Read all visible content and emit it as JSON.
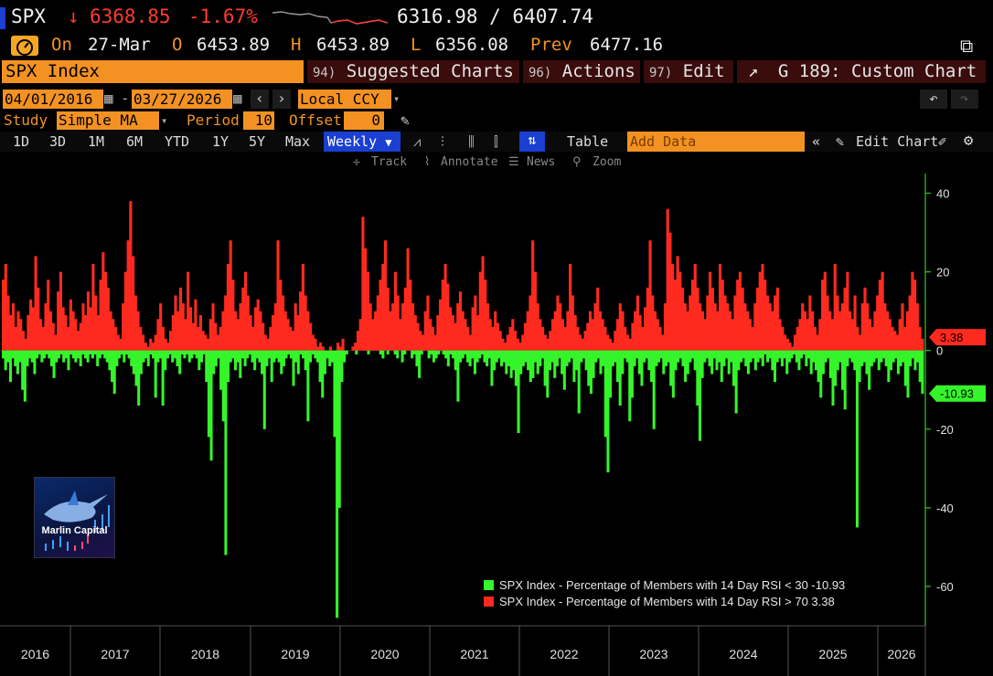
{
  "header": {
    "ticker": "SPX",
    "last": "6368.85",
    "change_pct": "-1.67%",
    "low_high": "6316.98 / 6407.74",
    "on_label": "On",
    "date": "27-Mar",
    "o_label": "O",
    "open": "6453.89",
    "h_label": "H",
    "high": "6453.89",
    "l_label": "L",
    "low": "6356.08",
    "prev_label": "Prev",
    "prev": "6477.16"
  },
  "toolbar": {
    "security": "SPX Index",
    "suggested_num": "94)",
    "suggested": "Suggested Charts",
    "actions_num": "96)",
    "actions": "Actions",
    "edit_num": "97)",
    "edit": "Edit",
    "custom_chart": "G 189: Custom Chart"
  },
  "controls": {
    "start_date": "04/01/2016",
    "end_date": "03/27/2026",
    "currency": "Local CCY",
    "study_label": "Study",
    "study": "Simple MA",
    "period_label": "Period",
    "period": "10",
    "offset_label": "Offset",
    "offset": "0",
    "ranges": [
      "1D",
      "3D",
      "1M",
      "6M",
      "YTD",
      "1Y",
      "5Y",
      "Max"
    ],
    "frequency": "Weekly",
    "table": "Table",
    "add_data_placeholder": "Add Data",
    "edit_chart": "Edit Chart",
    "tools": [
      "Track",
      "Annotate",
      "News",
      "Zoom"
    ]
  },
  "logo": {
    "text": "Marlin Capital"
  },
  "chart_data": {
    "type": "bar",
    "ylim": [
      -70,
      45
    ],
    "yticks": [
      40,
      20,
      0,
      -20,
      -40,
      -60
    ],
    "xlabels": [
      "2016",
      "2017",
      "2018",
      "2019",
      "2020",
      "2021",
      "2022",
      "2023",
      "2024",
      "2025",
      "2026"
    ],
    "last_labels": {
      "above70": "3.38",
      "below30": "-10.93"
    },
    "series": [
      {
        "name": "SPX Index - Percentage of Members with 14 Day RSI < 30",
        "last": "-10.93",
        "color": "#35f52a",
        "values": [
          -2,
          -5,
          -3,
          -8,
          -2,
          -4,
          -6,
          -3,
          -10,
          -13,
          -4,
          -2,
          -3,
          -6,
          -2,
          -1,
          -3,
          -2,
          -1,
          -2,
          -4,
          -7,
          -3,
          -2,
          -1,
          -3,
          -2,
          -5,
          -1,
          -2,
          -3,
          -2,
          -4,
          -1,
          -2,
          -3,
          -1,
          -2,
          -1,
          -4,
          -2,
          -1,
          -2,
          -3,
          -5,
          -8,
          -11,
          -4,
          -2,
          -1,
          -3,
          -1,
          -2,
          -4,
          -6,
          -9,
          -14,
          -6,
          -3,
          -2,
          -4,
          -1,
          -2,
          -12,
          -3,
          -2,
          -14,
          -5,
          -2,
          -1,
          -3,
          -2,
          -4,
          -6,
          -1,
          -2,
          -1,
          -3,
          -2,
          -1,
          -2,
          -5,
          -3,
          -1,
          -8,
          -22,
          -28,
          -6,
          -4,
          -2,
          -10,
          -18,
          -52,
          -8,
          -3,
          -2,
          -5,
          -3,
          -7,
          -2,
          -4,
          -2,
          -1,
          -3,
          -5,
          -2,
          -3,
          -6,
          -20,
          -4,
          -2,
          -8,
          -3,
          -2,
          -3,
          -6,
          -4,
          -2,
          -1,
          -2,
          -9,
          -3,
          -6,
          -1,
          -2,
          -5,
          -18,
          -3,
          -1,
          -2,
          -3,
          -8,
          -12,
          -6,
          -2,
          -4,
          -3,
          -22,
          -68,
          -40,
          -8,
          -3,
          -1,
          0,
          0,
          0,
          -1,
          0,
          0,
          0,
          0,
          -1,
          0,
          0,
          0,
          0,
          -1,
          -2,
          0,
          -1,
          0,
          0,
          -1,
          -2,
          0,
          -3,
          -1,
          0,
          0,
          -2,
          -1,
          -4,
          -7,
          -1,
          0,
          0,
          -2,
          -1,
          -3,
          -2,
          -1,
          0,
          -1,
          -2,
          -4,
          -1,
          -2,
          -5,
          -13,
          -3,
          -2,
          -1,
          -3,
          -4,
          -2,
          -6,
          -3,
          -2,
          -1,
          -3,
          -4,
          -2,
          -9,
          -5,
          -3,
          -2,
          -4,
          -3,
          -6,
          -4,
          -7,
          -5,
          -9,
          -21,
          -6,
          -4,
          -3,
          -5,
          -8,
          -7,
          -3,
          -6,
          -4,
          -2,
          -9,
          -12,
          -5,
          -3,
          -7,
          -4,
          -2,
          -6,
          -10,
          -4,
          -3,
          -2,
          -8,
          -5,
          -16,
          -3,
          -2,
          -5,
          -9,
          -11,
          -7,
          -3,
          -2,
          -6,
          -4,
          -22,
          -31,
          -12,
          -4,
          -3,
          -8,
          -14,
          -6,
          -2,
          -3,
          -18,
          -12,
          -4,
          -2,
          -6,
          -9,
          -3,
          -2,
          -5,
          -8,
          -20,
          -4,
          -3,
          -2,
          -6,
          -4,
          -3,
          -9,
          -12,
          -5,
          -3,
          -2,
          -4,
          -8,
          -6,
          -3,
          -2,
          -5,
          -14,
          -23,
          -7,
          -3,
          -2,
          -4,
          -6,
          -2,
          -5,
          -3,
          -8,
          -4,
          -2,
          -6,
          -3,
          -9,
          -16,
          -5,
          -3,
          -2,
          -4,
          -6,
          -3,
          -2,
          -5,
          -3,
          -2,
          -4,
          -1,
          -3,
          -2,
          -5,
          -8,
          -3,
          -2,
          -4,
          -2,
          -6,
          -3,
          -2,
          -1,
          -3,
          -5,
          -2,
          -1,
          -4,
          -2,
          -6,
          -3,
          -5,
          -8,
          -12,
          -6,
          -3,
          -2,
          -7,
          -14,
          -9,
          -5,
          -3,
          -10,
          -15,
          -4,
          -2,
          -3,
          -5,
          -45,
          -8,
          -4,
          -3,
          -6,
          -10,
          -4,
          -3,
          -2,
          -5,
          -3,
          -2,
          -4,
          -8,
          -5,
          -3,
          -2,
          -6,
          -4,
          -3,
          -9,
          -12,
          -4,
          -2,
          -5,
          -3,
          -8,
          -11
        ]
      },
      {
        "name": "SPX Index - Percentage of Members with 14 Day RSI > 70",
        "last": "3.38",
        "color": "#ff2a1f",
        "values": [
          18,
          22,
          14,
          9,
          12,
          6,
          10,
          8,
          5,
          3,
          9,
          13,
          11,
          24,
          16,
          8,
          6,
          12,
          18,
          10,
          7,
          4,
          15,
          20,
          11,
          9,
          6,
          13,
          10,
          8,
          5,
          7,
          12,
          9,
          15,
          11,
          22,
          14,
          9,
          18,
          25,
          20,
          16,
          10,
          8,
          6,
          4,
          3,
          12,
          20,
          28,
          38,
          24,
          14,
          10,
          6,
          4,
          2,
          1,
          3,
          2,
          4,
          8,
          12,
          6,
          3,
          2,
          5,
          9,
          14,
          10,
          16,
          12,
          8,
          20,
          11,
          7,
          13,
          6,
          9,
          5,
          4,
          3,
          8,
          12,
          7,
          4,
          6,
          10,
          14,
          22,
          28,
          18,
          10,
          8,
          12,
          16,
          20,
          14,
          9,
          6,
          11,
          13,
          10,
          7,
          4,
          3,
          6,
          9,
          12,
          28,
          18,
          14,
          10,
          8,
          6,
          5,
          12,
          9,
          15,
          22,
          14,
          10,
          7,
          4,
          3,
          1,
          2,
          1,
          0,
          0,
          1,
          0,
          0,
          2,
          1,
          3,
          0,
          0,
          0,
          1,
          2,
          5,
          8,
          34,
          26,
          20,
          12,
          8,
          10,
          14,
          18,
          22,
          28,
          16,
          10,
          12,
          20,
          14,
          8,
          12,
          16,
          26,
          18,
          12,
          9,
          7,
          5,
          4,
          10,
          14,
          8,
          6,
          4,
          9,
          13,
          18,
          22,
          17,
          11,
          9,
          7,
          12,
          15,
          10,
          8,
          6,
          4,
          11,
          14,
          9,
          20,
          24,
          18,
          12,
          8,
          6,
          10,
          7,
          5,
          3,
          2,
          4,
          6,
          8,
          5,
          3,
          2,
          4,
          7,
          10,
          14,
          28,
          20,
          12,
          8,
          6,
          4,
          3,
          5,
          8,
          10,
          14,
          12,
          8,
          6,
          10,
          22,
          14,
          9,
          6,
          4,
          3,
          5,
          7,
          10,
          8,
          12,
          16,
          10,
          8,
          6,
          4,
          3,
          2,
          5,
          8,
          12,
          10,
          6,
          4,
          3,
          7,
          10,
          14,
          9,
          6,
          11,
          16,
          28,
          14,
          10,
          8,
          6,
          4,
          12,
          36,
          30,
          22,
          18,
          24,
          20,
          16,
          12,
          10,
          14,
          18,
          22,
          16,
          12,
          10,
          8,
          14,
          20,
          16,
          12,
          10,
          22,
          18,
          14,
          12,
          10,
          8,
          14,
          18,
          20,
          16,
          12,
          10,
          8,
          6,
          12,
          16,
          20,
          22,
          18,
          14,
          12,
          10,
          14,
          16,
          8,
          6,
          4,
          3,
          2,
          1,
          4,
          6,
          8,
          12,
          10,
          8,
          14,
          10,
          6,
          4,
          8,
          18,
          20,
          14,
          10,
          8,
          22,
          14,
          10,
          12,
          16,
          20,
          10,
          8,
          14,
          6,
          4,
          12,
          16,
          12,
          8,
          6,
          10,
          14,
          18,
          20,
          12,
          10,
          8,
          6,
          5,
          4,
          8,
          12,
          6,
          10,
          14,
          20,
          18,
          12,
          6,
          3
        ]
      }
    ]
  }
}
